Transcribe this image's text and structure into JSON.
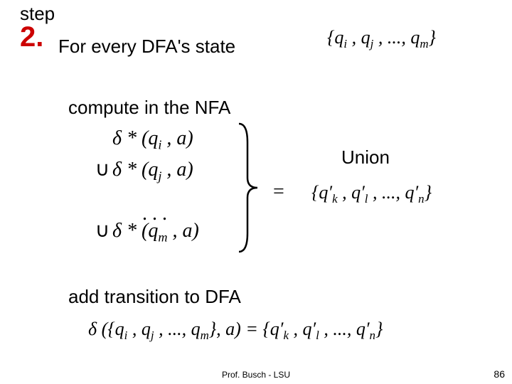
{
  "step": {
    "label": "step",
    "number": "2."
  },
  "text": {
    "line1": "For every DFA's state",
    "line2": "compute in the NFA",
    "line3": "add transition to DFA",
    "union": "Union",
    "footer": "Prof. Busch - LSU",
    "page": "86"
  },
  "math": {
    "state_set": "{q<sub>i</sub> , q<sub>j</sub> , ..., q<sub>m</sub>}",
    "delta_i": "δ * (q<sub>i</sub> , a)",
    "delta_j": "δ * (q<sub>j</sub> , a)",
    "delta_m": "δ * (q<sub>m</sub> , a)",
    "dots": ". . .",
    "equals": "=",
    "result_set": "{q′<sub>k</sub> , q′<sub>l</sub> , ..., q′<sub>n</sub>}",
    "final": "δ ({q<sub>i</sub> , q<sub>j</sub> , ..., q<sub>m</sub>},  a) = {q′<sub>k</sub> , q′<sub>l</sub> , ..., q′<sub>n</sub>}"
  },
  "colors": {
    "accent": "#cc0000",
    "text": "#000000",
    "bg": "#ffffff"
  }
}
